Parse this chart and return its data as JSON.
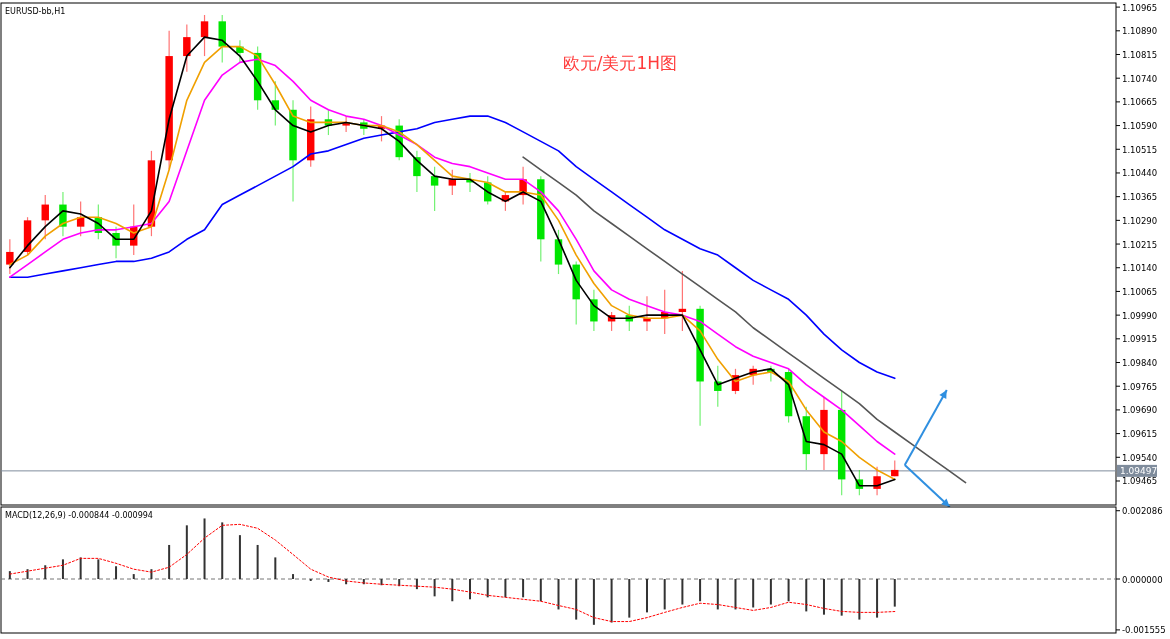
{
  "chart_data": [
    {
      "type": "candlestick",
      "title": "欧元/美元1H图",
      "annotations": [
        "EURUSD-bb,H1"
      ],
      "categories": [
        null,
        null,
        null,
        null,
        null,
        null,
        null,
        null,
        null,
        null,
        null,
        null,
        null,
        null,
        null,
        null,
        null,
        null,
        null,
        null,
        null,
        null,
        null,
        null,
        null,
        null,
        null,
        null,
        null,
        null,
        null,
        null,
        null,
        null,
        null,
        null,
        null,
        null,
        null,
        null,
        null,
        null,
        null,
        null,
        null,
        null,
        null,
        null,
        null,
        null,
        null,
        null,
        null,
        null,
        null,
        null,
        null,
        null,
        null,
        null,
        null,
        null,
        null
      ],
      "ohlc": [
        [
          1.1015,
          1.1023,
          1.1012,
          1.1019
        ],
        [
          1.1019,
          1.103,
          1.1018,
          1.1029
        ],
        [
          1.1029,
          1.1037,
          1.1023,
          1.1034
        ],
        [
          1.1034,
          1.1038,
          1.1024,
          1.1027
        ],
        [
          1.1027,
          1.1035,
          1.1024,
          1.103
        ],
        [
          1.103,
          1.1034,
          1.1023,
          1.1025
        ],
        [
          1.1025,
          1.1027,
          1.1017,
          1.1021
        ],
        [
          1.1021,
          1.1034,
          1.1018,
          1.1027
        ],
        [
          1.1027,
          1.1051,
          1.1024,
          1.1048
        ],
        [
          1.1048,
          1.1089,
          1.1045,
          1.1081
        ],
        [
          1.1081,
          1.1091,
          1.1076,
          1.1087
        ],
        [
          1.1087,
          1.1094,
          1.1081,
          1.1092
        ],
        [
          1.1092,
          1.1094,
          1.1079,
          1.1084
        ],
        [
          1.1084,
          1.1086,
          1.1079,
          1.1082
        ],
        [
          1.1082,
          1.1084,
          1.1064,
          1.1067
        ],
        [
          1.1067,
          1.1073,
          1.1059,
          1.1064
        ],
        [
          1.1064,
          1.1067,
          1.1035,
          1.1048
        ],
        [
          1.1048,
          1.1065,
          1.1046,
          1.1061
        ],
        [
          1.1061,
          1.1064,
          1.1056,
          1.1059
        ],
        [
          1.1059,
          1.1062,
          1.1057,
          1.106
        ],
        [
          1.106,
          1.1061,
          1.1056,
          1.1058
        ],
        [
          1.1058,
          1.1062,
          1.1054,
          1.1059
        ],
        [
          1.1059,
          1.1061,
          1.1048,
          1.1049
        ],
        [
          1.1049,
          1.1051,
          1.1038,
          1.1043
        ],
        [
          1.1043,
          1.1046,
          1.1032,
          1.104
        ],
        [
          1.104,
          1.1045,
          1.1037,
          1.1042
        ],
        [
          1.1042,
          1.1044,
          1.1038,
          1.1041
        ],
        [
          1.1041,
          1.1043,
          1.1034,
          1.1035
        ],
        [
          1.1035,
          1.1038,
          1.1032,
          1.1037
        ],
        [
          1.1037,
          1.1046,
          1.1034,
          1.1042
        ],
        [
          1.1042,
          1.1043,
          1.1016,
          1.1023
        ],
        [
          1.1023,
          1.1026,
          1.1012,
          1.1015
        ],
        [
          1.1015,
          1.1016,
          1.0996,
          1.1004
        ],
        [
          1.1004,
          1.1007,
          1.0994,
          1.0997
        ],
        [
          1.0997,
          1.1,
          1.0994,
          1.0999
        ],
        [
          1.0999,
          1.1002,
          1.0994,
          1.0997
        ],
        [
          1.0997,
          1.1005,
          1.0994,
          1.0998
        ],
        [
          1.0998,
          1.1007,
          1.0993,
          1.1
        ],
        [
          1.1,
          1.1013,
          1.0994,
          1.1001
        ],
        [
          1.1001,
          1.1002,
          1.0964,
          1.0978
        ],
        [
          1.0978,
          1.0983,
          1.097,
          1.0975
        ],
        [
          1.0975,
          1.0982,
          1.0974,
          1.098
        ],
        [
          1.098,
          1.0983,
          1.0977,
          1.0982
        ],
        [
          1.0982,
          1.0983,
          1.0978,
          1.0981
        ],
        [
          1.0981,
          1.0982,
          1.0965,
          1.0967
        ],
        [
          1.0967,
          1.097,
          1.095,
          1.0955
        ],
        [
          1.0955,
          1.0973,
          1.095,
          1.0969
        ],
        [
          1.0969,
          1.0975,
          1.0942,
          1.0947
        ],
        [
          1.0947,
          1.095,
          1.0942,
          1.0944
        ],
        [
          1.0944,
          1.0951,
          1.0942,
          1.0948
        ],
        [
          1.0948,
          1.0953,
          1.0948,
          1.095
        ],
        null,
        null,
        null,
        null,
        null,
        null,
        null,
        null,
        null,
        null,
        null,
        null
      ],
      "colors": [
        "#ff0000",
        "#ff0000",
        "#ff0000",
        "#00e600",
        "#ff0000",
        "#00e600",
        "#00e600",
        "#ff0000",
        "#ff0000",
        "#ff0000",
        "#ff0000",
        "#ff0000",
        "#00e600",
        "#00e600",
        "#00e600",
        "#00e600",
        "#00e600",
        "#ff0000",
        "#00e600",
        "#ff0000",
        "#00e600",
        "#ff0000",
        "#00e600",
        "#00e600",
        "#00e600",
        "#ff0000",
        "#00e600",
        "#00e600",
        "#ff0000",
        "#ff0000",
        "#00e600",
        "#00e600",
        "#00e600",
        "#00e600",
        "#ff0000",
        "#00e600",
        "#ff0000",
        "#ff0000",
        "#ff0000",
        "#00e600",
        "#00e600",
        "#ff0000",
        "#ff0000",
        "#00e600",
        "#00e600",
        "#00e600",
        "#ff0000",
        "#00e600",
        "#00e600",
        "#ff0000",
        "#ff0000",
        null,
        null,
        null,
        null,
        null,
        null,
        null,
        null,
        null,
        null,
        null,
        null
      ],
      "series": [
        {
          "type": "line",
          "color": "#0000ff",
          "values": [
            1.1011,
            1.1011,
            1.1012,
            1.1013,
            1.1014,
            1.1015,
            1.1016,
            1.1016,
            1.1017,
            1.1019,
            1.1023,
            1.1026,
            1.1034,
            1.1037,
            1.104,
            1.1043,
            1.1046,
            1.105,
            1.1051,
            1.1053,
            1.1055,
            1.1056,
            1.1057,
            1.1058,
            1.106,
            1.1061,
            1.1062,
            1.1062,
            1.106,
            1.1057,
            1.1054,
            1.1051,
            1.1046,
            1.1042,
            1.1038,
            1.1034,
            1.103,
            1.1026,
            1.1023,
            1.102,
            1.1018,
            1.1014,
            1.101,
            1.1007,
            1.1004,
            1.0999,
            1.0993,
            1.0988,
            1.0984,
            1.0981,
            1.0979,
            null,
            null,
            null,
            null,
            null,
            null,
            null,
            null,
            null,
            null,
            null,
            null
          ]
        },
        {
          "type": "line",
          "color": "#ff00ff",
          "values": [
            1.1011,
            1.1015,
            1.1019,
            1.1023,
            1.1025,
            1.1026,
            1.1026,
            1.1027,
            1.1028,
            1.1035,
            1.1051,
            1.1067,
            1.1075,
            1.1079,
            1.108,
            1.1078,
            1.1073,
            1.1067,
            1.1064,
            1.1062,
            1.1061,
            1.1059,
            1.1056,
            1.1053,
            1.1049,
            1.1047,
            1.1046,
            1.1044,
            1.1042,
            1.1042,
            1.1038,
            1.1032,
            1.1023,
            1.1013,
            1.1007,
            1.1004,
            1.1002,
            1.1,
            1.0999,
            1.0997,
            1.0993,
            1.0989,
            1.0986,
            1.0984,
            1.0982,
            1.0977,
            1.0973,
            1.0969,
            1.0964,
            1.0959,
            1.0955,
            null,
            null,
            null,
            null,
            null,
            null,
            null,
            null,
            null,
            null,
            null,
            null
          ]
        },
        {
          "type": "line",
          "color": "#f0a000",
          "values": [
            1.1015,
            1.1018,
            1.1024,
            1.1028,
            1.103,
            1.103,
            1.1028,
            1.1025,
            1.1027,
            1.1045,
            1.1067,
            1.1079,
            1.1084,
            1.1084,
            1.1081,
            1.1072,
            1.1062,
            1.106,
            1.106,
            1.106,
            1.1059,
            1.1059,
            1.1057,
            1.1053,
            1.1048,
            1.1043,
            1.1042,
            1.1041,
            1.1038,
            1.1038,
            1.1037,
            1.1029,
            1.1018,
            1.1009,
            1.1002,
            1.0999,
            1.0998,
            1.0998,
            1.0999,
            1.0994,
            1.0985,
            1.0978,
            1.098,
            1.0981,
            1.0978,
            1.0969,
            1.0962,
            1.0959,
            1.0954,
            1.095,
            1.0947,
            null,
            null,
            null,
            null,
            null,
            null,
            null,
            null,
            null,
            null,
            null,
            null
          ]
        },
        {
          "type": "line",
          "color": "#000000",
          "values": [
            1.1014,
            1.1021,
            1.1027,
            1.1032,
            1.1031,
            1.1028,
            1.1023,
            1.1023,
            1.1032,
            1.1061,
            1.1081,
            1.1087,
            1.1086,
            1.1081,
            1.1073,
            1.1064,
            1.1059,
            1.1057,
            1.1059,
            1.106,
            1.1059,
            1.1058,
            1.1054,
            1.1048,
            1.1043,
            1.1042,
            1.1042,
            1.1038,
            1.1035,
            1.1038,
            1.1035,
            1.1023,
            1.101,
            1.1002,
            1.0998,
            1.0998,
            1.0999,
            1.0999,
            1.0999,
            1.0988,
            1.0977,
            1.0979,
            1.0981,
            1.0982,
            1.0977,
            1.0959,
            1.0958,
            1.0955,
            1.0945,
            1.0945,
            1.0947,
            null,
            null,
            null,
            null,
            null,
            null,
            null,
            null,
            null,
            null,
            null,
            null
          ]
        },
        {
          "type": "line",
          "color": "#555555",
          "values": [
            null,
            null,
            null,
            null,
            null,
            null,
            null,
            null,
            null,
            null,
            null,
            null,
            null,
            null,
            null,
            null,
            null,
            null,
            null,
            null,
            null,
            null,
            null,
            null,
            null,
            null,
            null,
            null,
            null,
            1.1049,
            1.1045,
            1.1041,
            1.1037,
            1.1032,
            1.1028,
            1.1024,
            1.102,
            1.1016,
            1.1012,
            1.1008,
            1.1004,
            1.1,
            1.0995,
            1.0991,
            1.0987,
            1.0983,
            1.0979,
            1.0975,
            1.0971,
            1.0966,
            1.0962,
            1.0958,
            1.0954,
            1.095,
            1.0946,
            null,
            null,
            null,
            null,
            null,
            null,
            null,
            null
          ]
        }
      ],
      "ylim": [
        1.09389,
        1.10978
      ],
      "yticks": [
        {
          "value": 1.10965,
          "label": "1.10965"
        },
        {
          "value": 1.1089,
          "label": "1.10890"
        },
        {
          "value": 1.10815,
          "label": "1.10815"
        },
        {
          "value": 1.1074,
          "label": "1.10740"
        },
        {
          "value": 1.10665,
          "label": "1.10665"
        },
        {
          "value": 1.1059,
          "label": "1.10590"
        },
        {
          "value": 1.10515,
          "label": "1.10515"
        },
        {
          "value": 1.1044,
          "label": "1.10440"
        },
        {
          "value": 1.10365,
          "label": "1.10365"
        },
        {
          "value": 1.1029,
          "label": "1.10290"
        },
        {
          "value": 1.10215,
          "label": "1.10215"
        },
        {
          "value": 1.1014,
          "label": "1.10140"
        },
        {
          "value": 1.10065,
          "label": "1.10065"
        },
        {
          "value": 1.0999,
          "label": "1.09990"
        },
        {
          "value": 1.09915,
          "label": "1.09915"
        },
        {
          "value": 1.0984,
          "label": "1.09840"
        },
        {
          "value": 1.09765,
          "label": "1.09765"
        },
        {
          "value": 1.0969,
          "label": "1.09690"
        },
        {
          "value": 1.09615,
          "label": "1.09615"
        },
        {
          "value": 1.0954,
          "label": "1.09540"
        },
        {
          "value": 1.09465,
          "label": "1.09465"
        }
      ],
      "ref_lines": [
        {
          "axis": "y",
          "value": 1.09497,
          "label": "1.09497",
          "color": "#7f8c9c"
        }
      ]
    },
    {
      "type": "bar",
      "annotations": [
        "MACD(12,26,9) -0.000844 -0.000994"
      ],
      "categories": [
        null,
        null,
        null,
        null,
        null,
        null,
        null,
        null,
        null,
        null,
        null,
        null,
        null,
        null,
        null,
        null,
        null,
        null,
        null,
        null,
        null,
        null,
        null,
        null,
        null,
        null,
        null,
        null,
        null,
        null,
        null,
        null,
        null,
        null,
        null,
        null,
        null,
        null,
        null,
        null,
        null,
        null,
        null,
        null,
        null,
        null,
        null,
        null,
        null,
        null,
        null,
        null,
        null,
        null,
        null,
        null,
        null,
        null,
        null,
        null,
        null,
        null,
        null
      ],
      "series": [
        {
          "color": "#333333",
          "values": [
            0.00024,
            0.0003,
            0.00042,
            0.0006,
            0.00066,
            0.0006,
            0.00039,
            0.00015,
            0.0003,
            0.00104,
            0.00164,
            0.00185,
            0.00173,
            0.00134,
            0.00104,
            0.00066,
            0.00015,
            -6e-05,
            -9e-05,
            -0.00016,
            -0.00016,
            -0.00019,
            -0.00022,
            -0.00031,
            -0.00053,
            -0.00068,
            -0.00062,
            -0.00056,
            -0.00056,
            -0.00056,
            -0.00068,
            -0.00093,
            -0.00124,
            -0.0014,
            -0.00133,
            -0.00118,
            -0.00102,
            -0.00093,
            -0.00078,
            -0.00068,
            -0.00093,
            -0.00093,
            -0.00087,
            -0.00078,
            -0.00068,
            -0.00099,
            -0.00109,
            -0.00112,
            -0.00124,
            -0.00118,
            -0.000844,
            null,
            null,
            null,
            null,
            null,
            null,
            null,
            null,
            null,
            null,
            null,
            null
          ]
        },
        {
          "type": "line",
          "color": "#ff0000",
          "line_style": "dotted",
          "values": [
            0.00015,
            0.00024,
            0.00033,
            0.00042,
            0.00063,
            0.00063,
            0.00048,
            0.0003,
            0.00021,
            0.00036,
            0.00075,
            0.00125,
            0.00164,
            0.00167,
            0.00155,
            0.00119,
            0.00075,
            0.0003,
            6e-05,
            -6e-05,
            -0.00012,
            -0.00016,
            -0.00019,
            -0.00022,
            -0.00025,
            -0.00031,
            -0.0004,
            -0.0005,
            -0.00056,
            -0.00062,
            -0.00068,
            -0.00081,
            -0.00093,
            -0.00118,
            -0.0013,
            -0.0013,
            -0.00118,
            -0.00102,
            -0.00087,
            -0.00074,
            -0.00078,
            -0.00087,
            -0.00096,
            -0.00087,
            -0.00071,
            -0.00078,
            -0.0009,
            -0.00099,
            -0.00102,
            -0.00102,
            -0.000994,
            null,
            null,
            null,
            null,
            null,
            null,
            null,
            null,
            null,
            null,
            null,
            null
          ]
        }
      ],
      "ylim": [
        -0.00165,
        0.0022
      ],
      "yticks": [
        {
          "value": 0.002086,
          "label": "0.002086"
        },
        {
          "value": 0,
          "label": "0.000000"
        },
        {
          "value": -0.001555,
          "label": "-0.001555"
        }
      ],
      "ref_lines": [
        {
          "axis": "y",
          "value": 0,
          "color": "#777777",
          "line_style": "dashed"
        }
      ]
    }
  ]
}
